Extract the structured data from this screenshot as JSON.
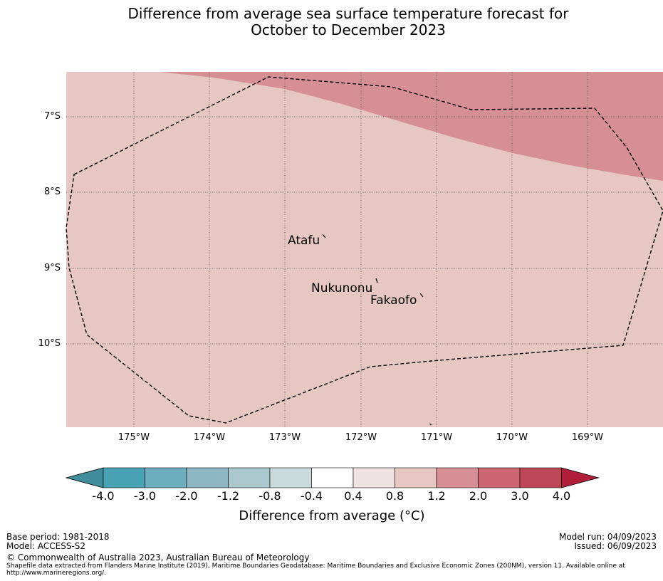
{
  "title": {
    "line1": "Difference from average sea surface temperature forecast for",
    "line2": "October to December 2023"
  },
  "map": {
    "lat_labels": [
      "7°S",
      "8°S",
      "9°S",
      "10°S"
    ],
    "lon_labels": [
      "175°W",
      "174°W",
      "173°W",
      "172°W",
      "171°W",
      "170°W",
      "169°W"
    ],
    "places": [
      {
        "name": "Atafu",
        "mark": "`"
      },
      {
        "name": "Nukunonu",
        "mark": "`"
      },
      {
        "name": "Fakaofo",
        "mark": "`"
      }
    ],
    "colors": {
      "anomaly_0_8_to_1_2": "#e6c7c2",
      "anomaly_1_2_to_2_0": "#d68f94",
      "grid": "#555555",
      "eez_boundary": "#000000"
    }
  },
  "colorbar": {
    "label": "Difference from average (°C)",
    "ticks": [
      "-4.0",
      "-3.0",
      "-2.0",
      "-1.2",
      "-0.8",
      "-0.4",
      "0.4",
      "0.8",
      "1.2",
      "2.0",
      "3.0",
      "4.0"
    ],
    "colors": [
      "#408e9c",
      "#48a2b3",
      "#6caebd",
      "#8db7c4",
      "#abc8ce",
      "#c8dadb",
      "#ffffff",
      "#efe2e2",
      "#e6c7c2",
      "#d68f94",
      "#cc6671",
      "#be4756",
      "#b11e3a"
    ]
  },
  "footer": {
    "base_period": "Base period: 1981-2018",
    "model": "Model: ACCESS-S2",
    "model_run": "Model run: 04/09/2023",
    "issued": "Issued: 06/09/2023",
    "copyright": "© Commonwealth of Australia 2023, Australian Bureau of Meteorology",
    "shapefile": "Shapefile data extracted from Flanders Marine Institute (2019), Maritime Boundaries Geodatabase: Maritime Boundaries and Exclusive Economic Zones (200NM), version 11. Available online at http://www.marineregions.org/."
  }
}
